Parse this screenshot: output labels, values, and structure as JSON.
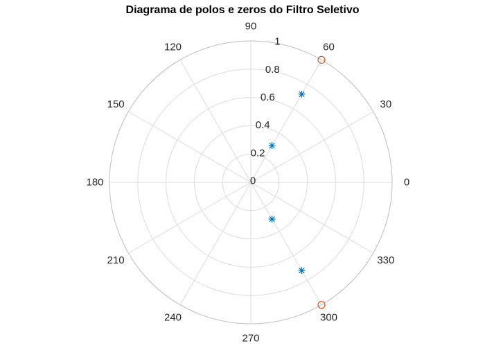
{
  "chart_data": {
    "type": "scatter",
    "subtype": "polar",
    "title": "Diagrama de polos e zeros do Filtro Seletivo",
    "theta_unit": "degrees",
    "theta_ticks": [
      "0",
      "30",
      "60",
      "90",
      "120",
      "150",
      "180",
      "210",
      "240",
      "270",
      "300",
      "330"
    ],
    "r_ticks": [
      "0",
      "0.2",
      "0.4",
      "0.6",
      "0.8",
      "1"
    ],
    "r_tick_values": [
      0,
      0.2,
      0.4,
      0.6,
      0.8,
      1
    ],
    "r_tick_angle_deg": 80,
    "rlim": [
      0,
      1
    ],
    "grid": true,
    "colors": {
      "poles": "#0072BD",
      "zeros": "#D95319",
      "grid": "#dcdcdc",
      "outer": "#bdbdbd"
    },
    "series": [
      {
        "marker": "asterisk",
        "color": "#0072BD",
        "points": [
          {
            "theta": 60,
            "r": 0.72
          },
          {
            "theta": -60,
            "r": 0.72
          },
          {
            "theta": 60,
            "r": 0.3
          },
          {
            "theta": -60,
            "r": 0.3
          }
        ]
      },
      {
        "marker": "circle",
        "color": "#D95319",
        "points": [
          {
            "theta": 60,
            "r": 1.0
          },
          {
            "theta": -60,
            "r": 1.0
          }
        ]
      }
    ]
  }
}
